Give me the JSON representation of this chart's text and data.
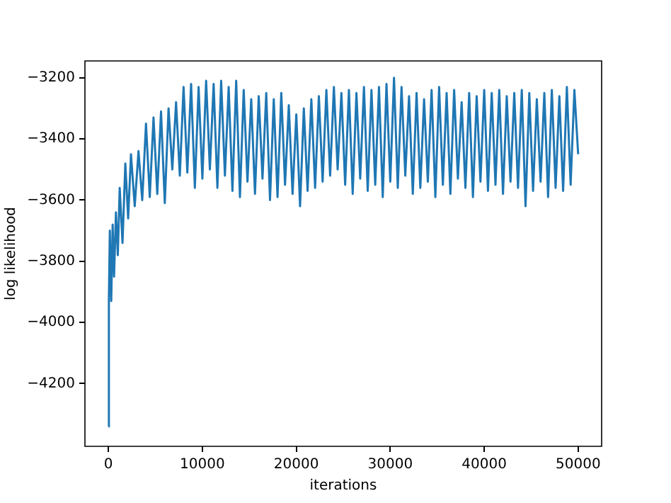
{
  "chart_data": {
    "type": "line",
    "xlabel": "iterations",
    "ylabel": "log likelihood",
    "xlim": [
      -2500,
      52500
    ],
    "ylim": [
      -4405,
      -3145
    ],
    "xticks": [
      0,
      10000,
      20000,
      30000,
      40000,
      50000
    ],
    "yticks": [
      {
        "value": -4200,
        "label": "−4200"
      },
      {
        "value": -4000,
        "label": "−4000"
      },
      {
        "value": -3800,
        "label": "−3800"
      },
      {
        "value": -3600,
        "label": "−3600"
      },
      {
        "value": -3400,
        "label": "−3400"
      },
      {
        "value": -3200,
        "label": "−3200"
      }
    ],
    "grid": false,
    "legend": false,
    "marker": "none",
    "line_style": "solid",
    "series": [
      {
        "color": "#1f77b4",
        "x": [
          0,
          50,
          150,
          300,
          450,
          600,
          800,
          1000,
          1200,
          1500,
          1800,
          2100,
          2400,
          2800,
          3200,
          3600,
          4000,
          4400,
          4800,
          5200,
          5600,
          6000,
          6400,
          6800,
          7200,
          7600,
          8000,
          8400,
          8800,
          9200,
          9600,
          10000,
          10400,
          10800,
          11200,
          11600,
          12000,
          12400,
          12800,
          13200,
          13600,
          14000,
          14400,
          14800,
          15200,
          15600,
          16000,
          16400,
          16800,
          17200,
          17600,
          18000,
          18400,
          18800,
          19200,
          19600,
          20000,
          20400,
          20800,
          21200,
          21600,
          22000,
          22400,
          22800,
          23200,
          23600,
          24000,
          24400,
          24800,
          25200,
          25600,
          26000,
          26400,
          26800,
          27200,
          27600,
          28000,
          28400,
          28800,
          29200,
          29600,
          30000,
          30400,
          30800,
          31200,
          31600,
          32000,
          32400,
          32800,
          33200,
          33600,
          34000,
          34400,
          34800,
          35200,
          35600,
          36000,
          36400,
          36800,
          37200,
          37600,
          38000,
          38400,
          38800,
          39200,
          39600,
          40000,
          40400,
          40800,
          41200,
          41600,
          42000,
          42400,
          42800,
          43200,
          43600,
          44000,
          44400,
          44800,
          45200,
          45600,
          46000,
          46400,
          46800,
          47200,
          47600,
          48000,
          48400,
          48800,
          49200,
          49600,
          50000
        ],
        "values": [
          -4340,
          -3920,
          -3700,
          -3930,
          -3680,
          -3850,
          -3640,
          -3780,
          -3560,
          -3740,
          -3480,
          -3660,
          -3450,
          -3620,
          -3440,
          -3600,
          -3350,
          -3590,
          -3330,
          -3580,
          -3310,
          -3610,
          -3300,
          -3500,
          -3280,
          -3520,
          -3230,
          -3510,
          -3220,
          -3560,
          -3230,
          -3530,
          -3210,
          -3500,
          -3220,
          -3560,
          -3210,
          -3520,
          -3230,
          -3570,
          -3210,
          -3590,
          -3240,
          -3540,
          -3270,
          -3580,
          -3260,
          -3530,
          -3250,
          -3600,
          -3270,
          -3590,
          -3250,
          -3550,
          -3290,
          -3580,
          -3320,
          -3620,
          -3300,
          -3570,
          -3270,
          -3560,
          -3260,
          -3540,
          -3240,
          -3520,
          -3230,
          -3500,
          -3250,
          -3550,
          -3240,
          -3580,
          -3250,
          -3530,
          -3230,
          -3570,
          -3240,
          -3550,
          -3230,
          -3590,
          -3220,
          -3540,
          -3200,
          -3560,
          -3230,
          -3520,
          -3260,
          -3580,
          -3250,
          -3560,
          -3270,
          -3540,
          -3240,
          -3590,
          -3230,
          -3550,
          -3250,
          -3580,
          -3240,
          -3530,
          -3280,
          -3560,
          -3250,
          -3590,
          -3260,
          -3540,
          -3240,
          -3570,
          -3250,
          -3550,
          -3240,
          -3580,
          -3260,
          -3540,
          -3250,
          -3560,
          -3240,
          -3620,
          -3250,
          -3570,
          -3270,
          -3540,
          -3250,
          -3590,
          -3240,
          -3560,
          -3260,
          -3570,
          -3230,
          -3550,
          -3240,
          -3450
        ]
      }
    ]
  }
}
